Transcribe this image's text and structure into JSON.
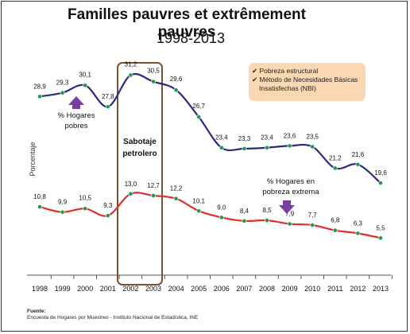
{
  "title": "Familles pauvres et extrêmement pauvres",
  "subtitle": "1998-2013",
  "legend": [
    {
      "mark": "✔",
      "label": "Pobreza estructural"
    },
    {
      "mark": "✔",
      "label": "Método de Necesidades Básicas"
    },
    {
      "mark": "",
      "label": "Insatisfechas (NBI)"
    }
  ],
  "source": {
    "label": "Fuente:",
    "text": "Encuesta de Hogares por Muestreo - Instituto Nacional de Estadística, INE"
  },
  "chart_data": {
    "type": "line",
    "x": [
      "1998",
      "1999",
      "2000",
      "2001",
      "2002",
      "2003",
      "2004",
      "2005",
      "2006",
      "2007",
      "2008",
      "2009",
      "2010",
      "2011",
      "2012",
      "2013"
    ],
    "ylabel": "Porcentaje",
    "grid": false,
    "series": [
      {
        "color": "#2a2a7e",
        "values": [
          28.9,
          29.3,
          30.1,
          27.8,
          31.2,
          30.5,
          29.6,
          26.7,
          23.4,
          23.3,
          23.4,
          23.6,
          23.5,
          21.2,
          21.6,
          19.6
        ],
        "labels": [
          "28,9",
          "29,3",
          "30,1",
          "27,8",
          "31,2",
          "30,5",
          "29,6",
          "26,7",
          "23,4",
          "23,3",
          "23,4",
          "23,6",
          "23,5",
          "21,2",
          "21,6",
          "19,6"
        ]
      },
      {
        "color": "#e02f2f",
        "values": [
          10.8,
          9.9,
          10.5,
          9.3,
          13.0,
          12.7,
          12.2,
          10.1,
          9.0,
          8.4,
          8.5,
          7.9,
          7.7,
          6.8,
          6.3,
          5.5
        ],
        "labels": [
          "10,8",
          "9,9",
          "10,5",
          "9,3",
          "13,0",
          "12,7",
          "12,2",
          "10,1",
          "9,0",
          "8,4",
          "8,5",
          "7,9",
          "7,7",
          "6,8",
          "6,3",
          "5,5"
        ]
      }
    ],
    "marker_color": "#1e9b4a",
    "annotations": [
      {
        "id": "pobres",
        "lines": [
          "% Hogares",
          "pobres"
        ],
        "arrow_color": "#7a3ea0"
      },
      {
        "id": "extrema",
        "lines": [
          "% Hogares en",
          "pobreza extrema"
        ],
        "arrow_color": "#7a3ea0"
      },
      {
        "id": "sabotaje",
        "lines": [
          "Sabotaje",
          "petrolero"
        ],
        "box_color": "#7a5230"
      }
    ]
  }
}
